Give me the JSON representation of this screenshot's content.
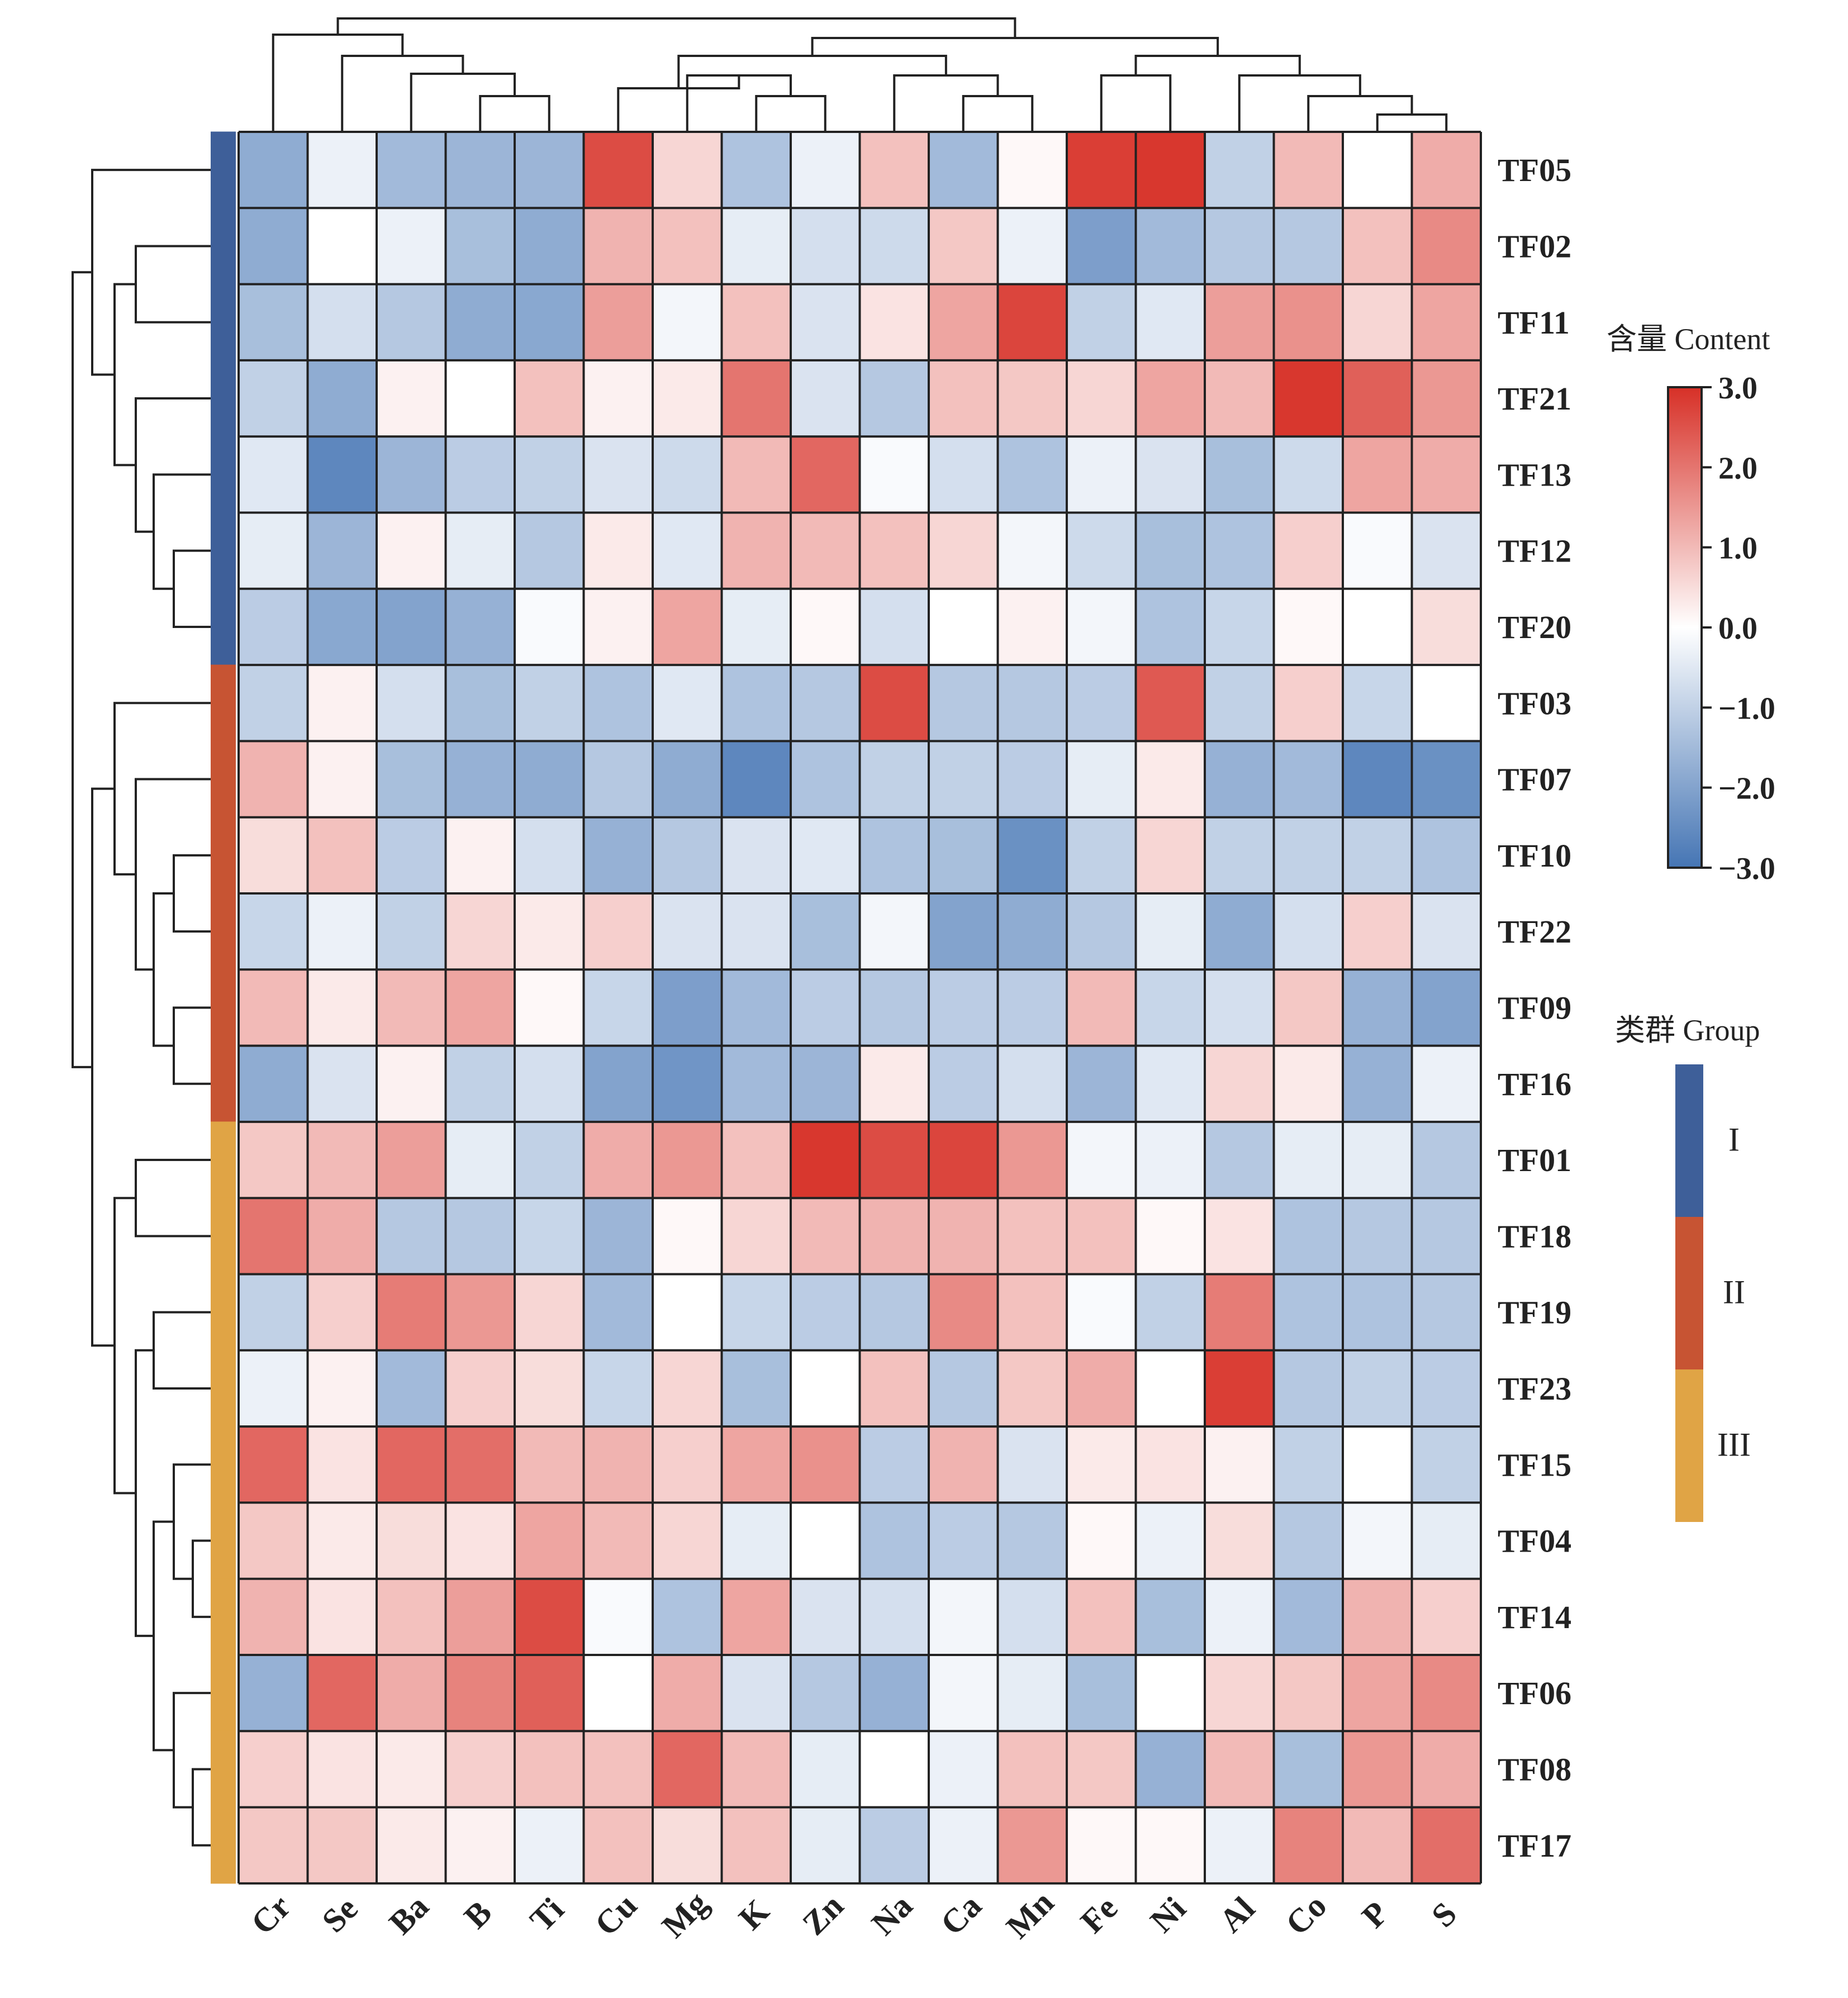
{
  "chart_data": {
    "type": "heatmap",
    "columns": [
      "Cr",
      "Se",
      "Ba",
      "B",
      "Ti",
      "Cu",
      "Mg",
      "K",
      "Zn",
      "Na",
      "Ca",
      "Mn",
      "Fe",
      "Ni",
      "Al",
      "Co",
      "P",
      "S"
    ],
    "rows": [
      "TF05",
      "TF02",
      "TF11",
      "TF21",
      "TF13",
      "TF12",
      "TF20",
      "TF03",
      "TF07",
      "TF10",
      "TF22",
      "TF09",
      "TF16",
      "TF01",
      "TF18",
      "TF19",
      "TF23",
      "TF15",
      "TF04",
      "TF14",
      "TF06",
      "TF08",
      "TF17"
    ],
    "row_groups": [
      "I",
      "I",
      "I",
      "I",
      "I",
      "I",
      "I",
      "II",
      "II",
      "II",
      "II",
      "II",
      "II",
      "III",
      "III",
      "III",
      "III",
      "III",
      "III",
      "III",
      "III",
      "III",
      "III"
    ],
    "values": [
      [
        -1.8,
        -0.3,
        -1.5,
        -1.6,
        -1.6,
        2.6,
        0.6,
        -1.3,
        -0.3,
        0.9,
        -1.5,
        0.1,
        2.8,
        2.9,
        -1.0,
        1.0,
        0.0,
        1.2
      ],
      [
        -1.8,
        0.0,
        -0.3,
        -1.4,
        -1.8,
        1.1,
        0.9,
        -0.4,
        -0.7,
        -0.8,
        0.8,
        -0.3,
        -2.1,
        -1.5,
        -1.2,
        -1.2,
        0.9,
        1.7
      ],
      [
        -1.4,
        -0.7,
        -1.2,
        -1.8,
        -1.9,
        1.4,
        -0.2,
        0.9,
        -0.6,
        0.4,
        1.3,
        2.7,
        -1.0,
        -0.5,
        1.4,
        1.6,
        0.6,
        1.3
      ],
      [
        -1.0,
        -1.8,
        0.2,
        0.0,
        0.9,
        0.2,
        0.3,
        2.0,
        -0.6,
        -1.2,
        0.9,
        0.8,
        0.6,
        1.3,
        1.0,
        2.9,
        2.3,
        1.5
      ],
      [
        -0.5,
        -2.6,
        -1.6,
        -1.1,
        -1.0,
        -0.6,
        -0.8,
        1.0,
        2.2,
        -0.1,
        -0.7,
        -1.3,
        -0.3,
        -0.6,
        -1.4,
        -0.8,
        1.3,
        1.2
      ],
      [
        -0.4,
        -1.6,
        0.2,
        -0.4,
        -1.2,
        0.3,
        -0.5,
        1.1,
        1.0,
        0.9,
        0.6,
        -0.2,
        -0.8,
        -1.4,
        -1.3,
        0.7,
        -0.1,
        -0.6
      ],
      [
        -1.1,
        -1.9,
        -2.0,
        -1.7,
        -0.1,
        0.2,
        1.3,
        -0.4,
        0.1,
        -0.7,
        0.0,
        0.2,
        -0.2,
        -1.3,
        -0.9,
        0.1,
        0.0,
        0.5
      ],
      [
        -1.0,
        0.2,
        -0.7,
        -1.4,
        -1.0,
        -1.3,
        -0.5,
        -1.3,
        -1.2,
        2.6,
        -1.2,
        -1.2,
        -1.1,
        2.4,
        -1.0,
        0.7,
        -0.9,
        0.0
      ],
      [
        1.1,
        0.2,
        -1.4,
        -1.7,
        -1.8,
        -1.2,
        -1.8,
        -2.6,
        -1.3,
        -1.0,
        -1.0,
        -1.1,
        -0.4,
        0.3,
        -1.7,
        -1.5,
        -2.6,
        -2.4
      ],
      [
        0.5,
        0.9,
        -1.1,
        0.2,
        -0.7,
        -1.7,
        -1.2,
        -0.6,
        -0.5,
        -1.3,
        -1.4,
        -2.4,
        -1.0,
        0.6,
        -1.0,
        -1.0,
        -1.0,
        -1.3
      ],
      [
        -0.9,
        -0.3,
        -1.0,
        0.6,
        0.3,
        0.7,
        -0.6,
        -0.6,
        -1.4,
        -0.2,
        -2.0,
        -1.8,
        -1.2,
        -0.4,
        -1.8,
        -0.7,
        0.7,
        -0.6
      ],
      [
        1.0,
        0.3,
        1.0,
        1.3,
        0.1,
        -0.9,
        -2.1,
        -1.5,
        -1.1,
        -1.2,
        -1.1,
        -1.1,
        1.0,
        -0.9,
        -0.7,
        0.8,
        -1.7,
        -2.0
      ],
      [
        -1.8,
        -0.6,
        0.2,
        -1.0,
        -0.7,
        -2.0,
        -2.3,
        -1.5,
        -1.6,
        0.3,
        -1.1,
        -0.7,
        -1.6,
        -0.5,
        0.6,
        0.3,
        -1.7,
        -0.3
      ],
      [
        0.8,
        1.0,
        1.4,
        -0.4,
        -1.0,
        1.2,
        1.5,
        0.9,
        2.9,
        2.6,
        2.7,
        1.5,
        -0.2,
        -0.3,
        -1.2,
        -0.4,
        -0.4,
        -1.2
      ],
      [
        2.0,
        1.2,
        -1.2,
        -1.2,
        -0.9,
        -1.6,
        0.1,
        0.6,
        1.0,
        1.1,
        1.1,
        0.9,
        0.9,
        0.1,
        0.4,
        -1.3,
        -1.2,
        -1.2
      ],
      [
        -1.0,
        0.7,
        1.9,
        1.5,
        0.6,
        -1.5,
        0.0,
        -0.9,
        -1.1,
        -1.2,
        1.7,
        0.9,
        -0.1,
        -1.0,
        1.9,
        -1.3,
        -1.3,
        -1.2
      ],
      [
        -0.3,
        0.2,
        -1.5,
        0.7,
        0.5,
        -0.9,
        0.6,
        -1.4,
        0.0,
        0.9,
        -1.2,
        0.8,
        1.2,
        0.0,
        2.8,
        -1.2,
        -1.0,
        -1.1
      ],
      [
        2.2,
        0.4,
        2.2,
        2.1,
        1.0,
        1.1,
        0.7,
        1.3,
        1.6,
        -1.1,
        1.1,
        -0.6,
        0.3,
        0.4,
        0.2,
        -1.0,
        0.0,
        -1.0
      ],
      [
        0.8,
        0.3,
        0.5,
        0.4,
        1.3,
        1.0,
        0.6,
        -0.4,
        0.0,
        -1.3,
        -1.1,
        -1.2,
        0.1,
        -0.3,
        0.5,
        -1.2,
        -0.2,
        -0.4
      ],
      [
        1.1,
        0.4,
        0.9,
        1.4,
        2.6,
        -0.1,
        -1.3,
        1.3,
        -0.6,
        -0.7,
        -0.2,
        -0.7,
        0.9,
        -1.4,
        -0.3,
        -1.5,
        1.1,
        0.7
      ],
      [
        -1.7,
        2.2,
        1.2,
        1.8,
        2.3,
        0.0,
        1.2,
        -0.6,
        -1.2,
        -1.7,
        -0.2,
        -0.4,
        -1.4,
        0.0,
        0.6,
        0.8,
        1.3,
        1.7
      ],
      [
        0.7,
        0.4,
        0.3,
        0.7,
        0.9,
        0.9,
        2.2,
        1.0,
        -0.4,
        0.0,
        -0.3,
        0.9,
        0.8,
        -1.7,
        1.0,
        -1.4,
        1.5,
        1.2
      ],
      [
        0.8,
        0.8,
        0.3,
        0.2,
        -0.3,
        0.9,
        0.5,
        0.9,
        -0.4,
        -1.1,
        -0.3,
        1.5,
        0.1,
        0.1,
        -0.3,
        1.8,
        1.0,
        2.1
      ]
    ],
    "colorbar": {
      "title": "含量  Content",
      "range": [
        -3.0,
        3.0
      ],
      "ticks": [
        "3.0",
        "2.0",
        "1.0",
        "0.0",
        "−1.0",
        "−2.0",
        "−3.0"
      ],
      "colors": {
        "low": "#4575b4",
        "mid": "#ffffff",
        "high": "#d73027"
      }
    },
    "group_legend": {
      "title": "类群  Group",
      "items": [
        {
          "label": "I",
          "color": "#3e5f99"
        },
        {
          "label": "II",
          "color": "#c75433"
        },
        {
          "label": "III",
          "color": "#e0a445"
        }
      ]
    },
    "col_dendrogram": [
      [
        12,
        13
      ],
      [
        16,
        17
      ],
      [
        15,
        -2
      ],
      [
        14,
        -3
      ],
      [
        -4,
        -1
      ],
      [
        3,
        4
      ],
      [
        2,
        -6
      ],
      [
        -7,
        -5
      ],
      [
        9,
        10
      ],
      [
        -9,
        11
      ],
      [
        8,
        -10
      ],
      [
        7,
        -11
      ],
      [
        5,
        6
      ],
      [
        -12,
        -13
      ],
      [
        -14,
        -15
      ],
      [
        0,
        1
      ],
      [
        -16,
        -8
      ],
      [
        -17,
        -18
      ],
      [
        -19,
        -17
      ]
    ],
    "row_dendrogram": "hierarchical clustering of rows"
  }
}
